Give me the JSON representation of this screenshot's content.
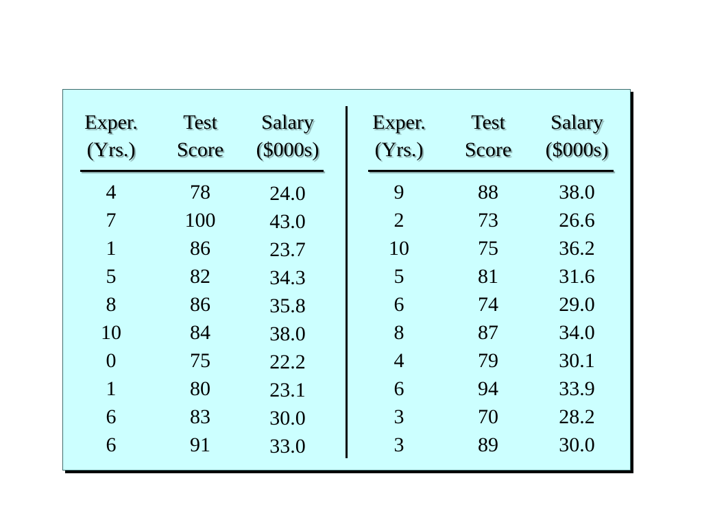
{
  "table": {
    "headers": {
      "experience": [
        "Exper.",
        "(Yrs.)"
      ],
      "test_score": [
        "Test",
        "Score"
      ],
      "salary": [
        "Salary",
        "($000s)"
      ]
    },
    "left": {
      "experience": [
        "4",
        "7",
        "1",
        "5",
        "8",
        "10",
        "0",
        "1",
        "6",
        "6"
      ],
      "test_score": [
        "78",
        "100",
        "86",
        "82",
        "86",
        "84",
        "75",
        "80",
        "83",
        "91"
      ],
      "salary": [
        "24.0",
        "43.0",
        "23.7",
        "34.3",
        "35.8",
        "38.0",
        "22.2",
        "23.1",
        "30.0",
        "33.0"
      ]
    },
    "right": {
      "experience": [
        "9",
        "2",
        "10",
        "5",
        "6",
        "8",
        "4",
        "6",
        "3",
        "3"
      ],
      "test_score": [
        "88",
        "73",
        "75",
        "81",
        "74",
        "87",
        "79",
        "94",
        "70",
        "89"
      ],
      "salary": [
        "38.0",
        "26.6",
        "36.2",
        "31.6",
        "29.0",
        "34.0",
        "30.1",
        "33.9",
        "28.2",
        "30.0"
      ]
    }
  },
  "colors": {
    "panel_background": "#ccffff",
    "panel_border": "#3d6a6a",
    "text": "#000000"
  }
}
